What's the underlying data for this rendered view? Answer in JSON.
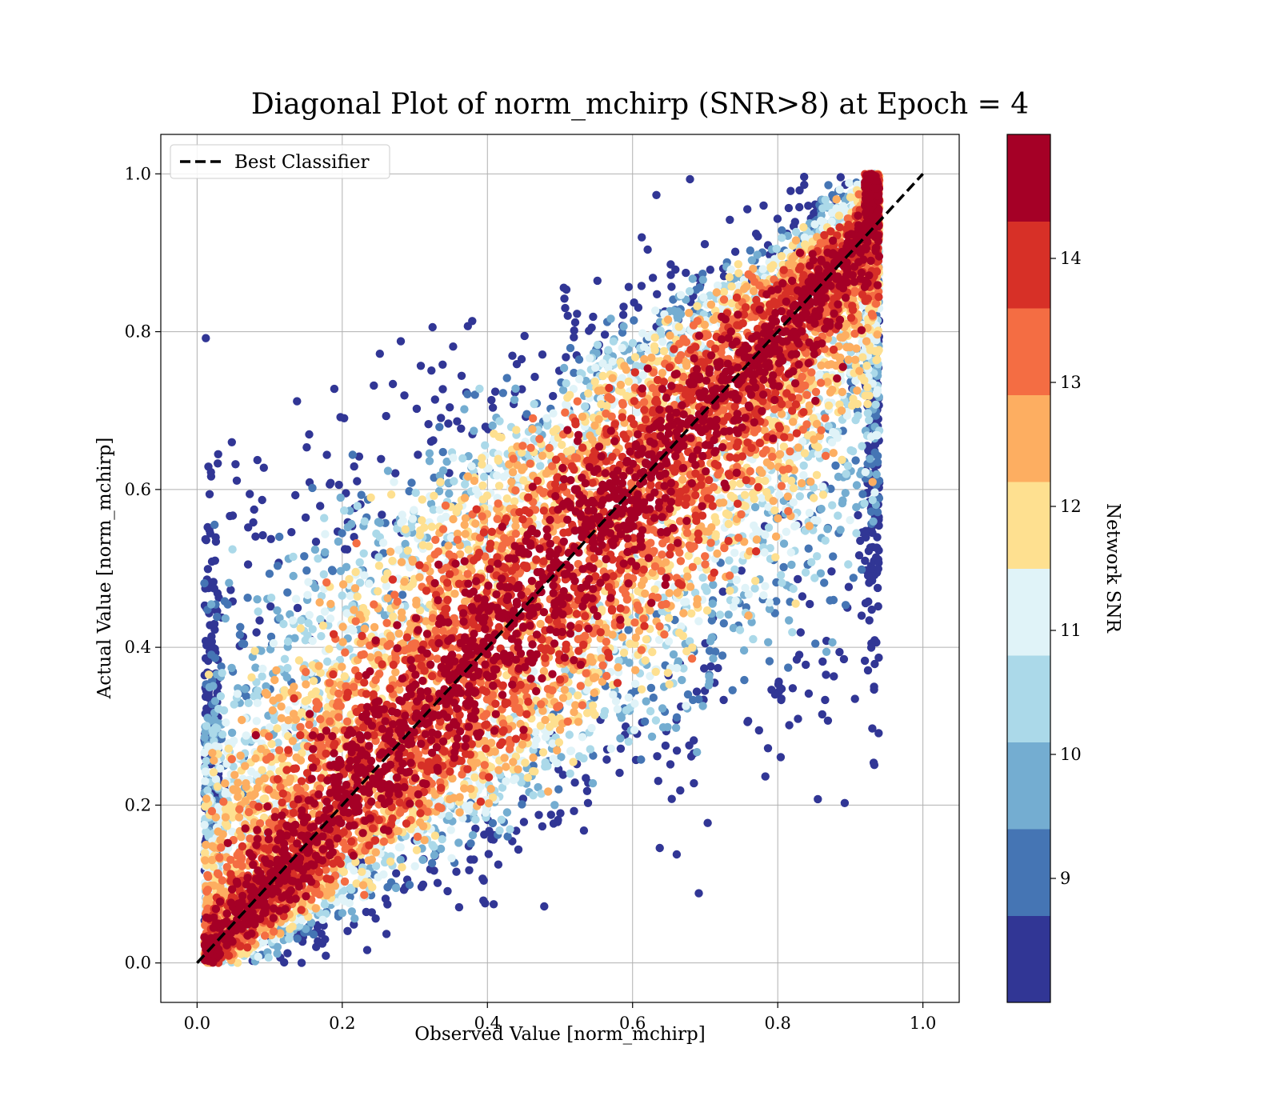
{
  "chart_data": {
    "type": "scatter",
    "title": "Diagonal Plot of norm_mchirp (SNR>8) at Epoch = 4",
    "xlabel": "Observed Value [norm_mchirp]",
    "ylabel": "Actual Value [norm_mchirp]",
    "xlim": [
      -0.05,
      1.05
    ],
    "ylim": [
      -0.05,
      1.05
    ],
    "xticks": [
      "0.0",
      "0.2",
      "0.4",
      "0.6",
      "0.8",
      "1.0"
    ],
    "yticks": [
      "0.0",
      "0.2",
      "0.4",
      "0.6",
      "0.8",
      "1.0"
    ],
    "grid": true,
    "legend": {
      "location": "upper-left",
      "entries": [
        {
          "label": "Best Classifier",
          "style": "dashed",
          "color": "#000000"
        }
      ]
    },
    "reference_line": {
      "label": "Best Classifier",
      "x": [
        0,
        1
      ],
      "y": [
        0,
        1
      ]
    },
    "colorbar": {
      "label": "Network SNR",
      "range": [
        8,
        15
      ],
      "ticks": [
        "9",
        "10",
        "11",
        "12",
        "13",
        "14"
      ],
      "colors": [
        "#313695",
        "#4575b4",
        "#74add1",
        "#abd9e9",
        "#e0f3f8",
        "#ffffbf",
        "#fee090",
        "#fdae61",
        "#f46d43",
        "#d73027",
        "#a50026"
      ]
    },
    "scatter_spread": {
      "core_near_diagonal_snr": 14.5,
      "points_clip_to_y_range": [
        0,
        1
      ],
      "x_extent_of_points": [
        0.01,
        0.94
      ]
    }
  }
}
